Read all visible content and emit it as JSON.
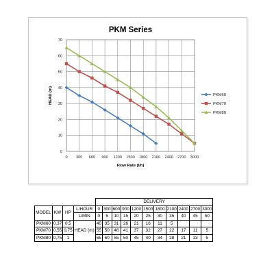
{
  "chart_data": {
    "type": "line",
    "title": "PKM Series",
    "xlabel": "Flow Rate (l/h)",
    "ylabel": "HEAD (m)",
    "xlim": [
      0,
      3000
    ],
    "ylim": [
      0,
      70
    ],
    "xticks": [
      0,
      300,
      600,
      900,
      1200,
      1500,
      1800,
      2100,
      2400,
      2700,
      3000
    ],
    "yticks": [
      0,
      10,
      20,
      30,
      40,
      50,
      60,
      70
    ],
    "grid": true,
    "legend_position": "right",
    "series": [
      {
        "name": "PKM60",
        "color": "#4a7ebb",
        "marker": "diamond",
        "x": [
          0,
          300,
          600,
          900,
          1200,
          1500,
          1800,
          2100
        ],
        "y": [
          40,
          35,
          31,
          26,
          21,
          16,
          11,
          5
        ]
      },
      {
        "name": "PKM70",
        "color": "#c0504d",
        "marker": "square",
        "x": [
          0,
          300,
          600,
          900,
          1200,
          1500,
          1800,
          2100,
          2400,
          2700,
          3000
        ],
        "y": [
          55,
          50,
          46,
          41,
          37,
          32,
          27,
          22,
          17,
          11,
          5
        ]
      },
      {
        "name": "PKM80",
        "color": "#9bbb59",
        "marker": "triangle",
        "x": [
          0,
          300,
          600,
          900,
          1200,
          1500,
          1800,
          2100,
          2400,
          2700,
          3000
        ],
        "y": [
          65,
          60,
          55,
          50,
          45,
          40,
          34,
          28,
          21,
          13,
          5
        ]
      }
    ]
  },
  "table": {
    "delivery_label": "DELIVERY",
    "model_label": "MODEL",
    "kw_label": "KW",
    "hp_label": "HP",
    "lhour_label": "L/HOUR",
    "lmin_label": "L/MIN",
    "head_label": "HEAD (m)",
    "lhour": [
      "0",
      "300",
      "600",
      "900",
      "1200",
      "1500",
      "1800",
      "2100",
      "2400",
      "2700",
      "3000"
    ],
    "lmin": [
      "0",
      "5",
      "10",
      "15",
      "20",
      "25",
      "30",
      "35",
      "40",
      "45",
      "50"
    ],
    "rows": [
      {
        "model": "PKM60",
        "kw": "0,37",
        "hp": "0,5",
        "head": [
          "40",
          "35",
          "31",
          "26",
          "21",
          "16",
          "11",
          "5",
          "",
          "",
          ""
        ]
      },
      {
        "model": "PKM70",
        "kw": "0,55",
        "hp": "0,75",
        "head": [
          "55",
          "50",
          "46",
          "41",
          "37",
          "32",
          "27",
          "22",
          "17",
          "11",
          "5"
        ]
      },
      {
        "model": "PKM80",
        "kw": "0,75",
        "hp": "1",
        "head": [
          "65",
          "60",
          "55",
          "50",
          "45",
          "40",
          "34",
          "28",
          "21",
          "13",
          "5"
        ]
      }
    ]
  }
}
